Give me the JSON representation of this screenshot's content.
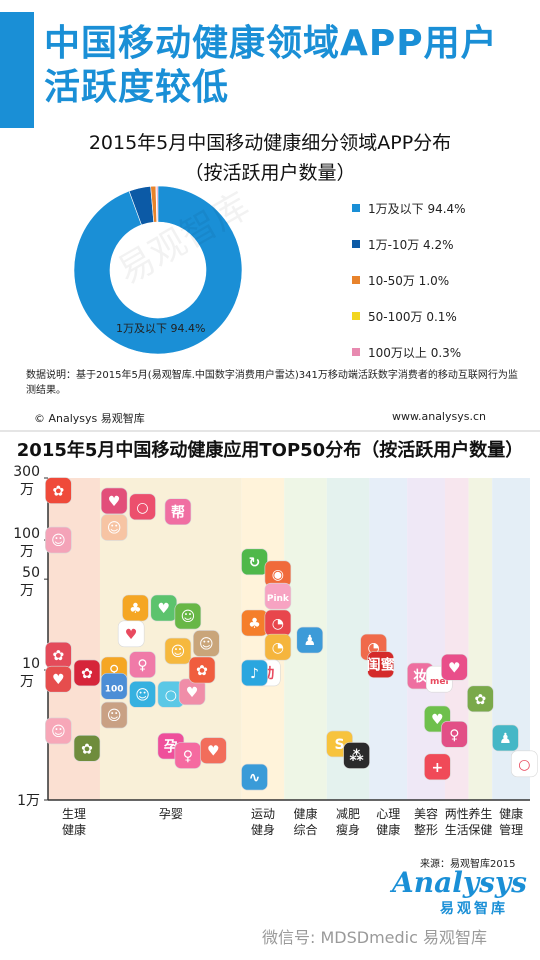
{
  "page": {
    "title": "中国移动健康领域APP用户活跃度较低",
    "source": "来源：易观智库2015",
    "footer": "微信号: MDSDmedic 易观智库",
    "watermark": "易观智库"
  },
  "chart1": {
    "title": "2015年5月中国移动健康细分领域APP分布",
    "subtitle": "（按活跃用户数量）",
    "note": "数据说明：基于2015年5月(易观智库.中国数字消费用户雷达)341万移动端活跃数字消费者的移动互联网行为监测结果。",
    "copyright": "© Analysys 易观智库",
    "website": "www.analysys.cn"
  },
  "chart2": {
    "title": "2015年5月中国移动健康应用TOP50分布（按活跃用户数量）"
  },
  "logo": {
    "en": "Analysys",
    "cn": "易观智库"
  },
  "colors": {
    "accent": "#1a8fd6",
    "seg1": "#1a8fd6",
    "seg2": "#0c5aa6",
    "seg3": "#e8832b",
    "seg4": "#f2d61f",
    "seg5": "#e88ab0"
  },
  "chart_data": [
    {
      "type": "pie",
      "title": "2015年5月中国移动健康细分领域APP分布",
      "subtitle": "（按活跃用户数量）",
      "slice_label": "1万及以下 94.4%",
      "slices": [
        {
          "label": "1万及以下 94.4%",
          "value": 94.4,
          "color": "#1a8fd6"
        },
        {
          "label": "1万-10万 4.2%",
          "value": 4.2,
          "color": "#0c5aa6"
        },
        {
          "label": "10-50万 1.0%",
          "value": 1.0,
          "color": "#e8832b"
        },
        {
          "label": "50-100万 0.1%",
          "value": 0.1,
          "color": "#f2d61f"
        },
        {
          "label": "100万以上 0.3%",
          "value": 0.3,
          "color": "#e88ab0"
        }
      ],
      "legend_position": "right"
    },
    {
      "type": "scatter",
      "title": "2015年5月中国移动健康应用TOP50分布（按活跃用户数量）",
      "y_scale": "log",
      "y_ticks": [
        {
          "label": "300万",
          "line1": "300",
          "line2": "万",
          "value": 300
        },
        {
          "label": "100万",
          "line1": "100",
          "line2": "万",
          "value": 100
        },
        {
          "label": "50万",
          "line1": "50",
          "line2": "万",
          "value": 50
        },
        {
          "label": "10万",
          "line1": "10",
          "line2": "万",
          "value": 10
        },
        {
          "label": "1万",
          "line1": "1万",
          "line2": "",
          "value": 1
        }
      ],
      "categories": [
        {
          "line1": "生理",
          "line2": "健康",
          "color": "#fbe0d2"
        },
        {
          "line1": "",
          "line2": "孕婴",
          "color": "#f9f0d8"
        },
        {
          "line1": "运动",
          "line2": "健身",
          "color": "#fff3da"
        },
        {
          "line1": "健康",
          "line2": "综合",
          "color": "#eef6e6"
        },
        {
          "line1": "减肥",
          "line2": "瘦身",
          "color": "#e4f2ee"
        },
        {
          "line1": "心理",
          "line2": "健康",
          "color": "#e6eef8"
        },
        {
          "line1": "美容",
          "line2": "整形",
          "color": "#efe8f6"
        },
        {
          "line1": "两性",
          "line2": "生活",
          "color": "#f7e6ee"
        },
        {
          "line1": "养生",
          "line2": "保健",
          "color": "#f2f4e2"
        },
        {
          "line1": "健康",
          "line2": "管理",
          "color": "#e4eef6"
        }
      ],
      "points": [
        {
          "cat": 0,
          "slot": 0.2,
          "y": 240,
          "color": "#ef4a3a",
          "glyph": "✿"
        },
        {
          "cat": 0,
          "slot": 0.2,
          "y": 100,
          "color": "#f4a3b8",
          "glyph": "☺"
        },
        {
          "cat": 0,
          "slot": 0.2,
          "y": 13,
          "color": "#e44b5a",
          "glyph": "✿"
        },
        {
          "cat": 0,
          "slot": 0.2,
          "y": 8.5,
          "color": "#e64d4d",
          "glyph": "♥"
        },
        {
          "cat": 0,
          "slot": 0.2,
          "y": 3.4,
          "color": "#f7a7b8",
          "glyph": "☺"
        },
        {
          "cat": 0,
          "slot": 0.75,
          "y": 9.5,
          "color": "#d6253a",
          "glyph": "✿"
        },
        {
          "cat": 0,
          "slot": 0.75,
          "y": 2.5,
          "color": "#6f8c3c",
          "glyph": "✿"
        },
        {
          "cat": 1,
          "slot": 0.1,
          "y": 200,
          "color": "#e24f7a",
          "glyph": "♥"
        },
        {
          "cat": 1,
          "slot": 0.3,
          "y": 180,
          "color": "#ec4f6d",
          "glyph": "○"
        },
        {
          "cat": 1,
          "slot": 0.55,
          "y": 165,
          "color": "#f06ea2",
          "glyph": "帮"
        },
        {
          "cat": 1,
          "slot": 0.1,
          "y": 125,
          "color": "#f7c4a3",
          "glyph": "☺"
        },
        {
          "cat": 1,
          "slot": 0.25,
          "y": 30,
          "color": "#f5a623",
          "glyph": "♣"
        },
        {
          "cat": 1,
          "slot": 0.45,
          "y": 30,
          "color": "#5cc36d",
          "glyph": "♥"
        },
        {
          "cat": 1,
          "slot": 0.62,
          "y": 26,
          "color": "#68b746",
          "glyph": "☺"
        },
        {
          "cat": 1,
          "slot": 0.22,
          "y": 19,
          "color": "#ffffff",
          "glyph": "♥"
        },
        {
          "cat": 1,
          "slot": 0.1,
          "y": 10,
          "color": "#f5a623",
          "glyph": "♀"
        },
        {
          "cat": 1,
          "slot": 0.3,
          "y": 11,
          "color": "#f07aa8",
          "glyph": "♀"
        },
        {
          "cat": 1,
          "slot": 0.1,
          "y": 7.5,
          "color": "#4c8ed6",
          "glyph": "100"
        },
        {
          "cat": 1,
          "slot": 0.3,
          "y": 6.5,
          "color": "#36b1e0",
          "glyph": "☺"
        },
        {
          "cat": 1,
          "slot": 0.5,
          "y": 6.5,
          "color": "#5bc8e6",
          "glyph": "○"
        },
        {
          "cat": 1,
          "slot": 0.65,
          "y": 6.8,
          "color": "#f08da8",
          "glyph": "♥"
        },
        {
          "cat": 1,
          "slot": 0.1,
          "y": 4.5,
          "color": "#c9a184",
          "glyph": "☺"
        },
        {
          "cat": 1,
          "slot": 0.5,
          "y": 2.6,
          "color": "#ef4f9b",
          "glyph": "孕"
        },
        {
          "cat": 1,
          "slot": 0.62,
          "y": 2.2,
          "color": "#f56aa0",
          "glyph": "♀"
        },
        {
          "cat": 1,
          "slot": 0.8,
          "y": 2.4,
          "color": "#f26d5b",
          "glyph": "♥"
        },
        {
          "cat": 1,
          "slot": 0.55,
          "y": 14,
          "color": "#f6b83d",
          "glyph": "☺"
        },
        {
          "cat": 1,
          "slot": 0.75,
          "y": 16,
          "color": "#c9a57a",
          "glyph": "☺"
        },
        {
          "cat": 1,
          "slot": 0.72,
          "y": 10,
          "color": "#f05d3e",
          "glyph": "✿"
        },
        {
          "cat": 2,
          "slot": 0.3,
          "y": 68,
          "color": "#4fb84a",
          "glyph": "↻"
        },
        {
          "cat": 2,
          "slot": 0.3,
          "y": 23,
          "color": "#f57e2b",
          "glyph": "♣"
        },
        {
          "cat": 2,
          "slot": 0.3,
          "y": 1.5,
          "color": "#3a9bd8",
          "glyph": "∿"
        },
        {
          "cat": 2,
          "slot": 0.85,
          "y": 55,
          "color": "#f06a3b",
          "glyph": "◉"
        },
        {
          "cat": 2,
          "slot": 0.85,
          "y": 37,
          "color": "#f7a3c2",
          "glyph": "Pink"
        },
        {
          "cat": 2,
          "slot": 0.85,
          "y": 23,
          "color": "#e8464c",
          "glyph": "◔"
        },
        {
          "cat": 2,
          "slot": 0.85,
          "y": 15,
          "color": "#f5b53d",
          "glyph": "◔"
        },
        {
          "cat": 2,
          "slot": 0.6,
          "y": 9.5,
          "color": "#ffffff",
          "glyph": "动"
        },
        {
          "cat": 2,
          "slot": 0.3,
          "y": 9.5,
          "color": "#2aa6df",
          "glyph": "♪"
        },
        {
          "cat": 3,
          "slot": 0.6,
          "y": 17,
          "color": "#3d9bd8",
          "glyph": "♟"
        },
        {
          "cat": 4,
          "slot": 0.3,
          "y": 2.7,
          "color": "#f7c33d",
          "glyph": "S"
        },
        {
          "cat": 4,
          "slot": 0.7,
          "y": 2.2,
          "color": "#2b2b2b",
          "glyph": "⁂"
        },
        {
          "cat": 4,
          "slot": 1.1,
          "y": 15,
          "color": "#f06a4b",
          "glyph": "◔"
        },
        {
          "cat": 5,
          "slot": 0.3,
          "y": 11,
          "color": "#d42a2a",
          "glyph": "闺蜜"
        },
        {
          "cat": 6,
          "slot": 0.35,
          "y": 9,
          "color": "#ee6fa0",
          "glyph": "妆"
        },
        {
          "cat": 6,
          "slot": 0.85,
          "y": 8.5,
          "color": "#ffffff",
          "glyph": "mei"
        },
        {
          "cat": 6,
          "slot": 0.8,
          "y": 4.2,
          "color": "#6ec04c",
          "glyph": "♥"
        },
        {
          "cat": 6,
          "slot": 0.8,
          "y": 1.8,
          "color": "#f04a58",
          "glyph": "+"
        },
        {
          "cat": 7,
          "slot": 0.4,
          "y": 10.5,
          "color": "#e94e8a",
          "glyph": "♥"
        },
        {
          "cat": 7,
          "slot": 0.4,
          "y": 3.2,
          "color": "#e24f86",
          "glyph": "♀"
        },
        {
          "cat": 8,
          "slot": 0.5,
          "y": 6.0,
          "color": "#7aa94a",
          "glyph": "✿"
        },
        {
          "cat": 9,
          "slot": 0.35,
          "y": 3.0,
          "color": "#45b7c6",
          "glyph": "♟"
        },
        {
          "cat": 9,
          "slot": 0.85,
          "y": 1.9,
          "color": "#ffffff",
          "glyph": "○"
        }
      ]
    }
  ]
}
